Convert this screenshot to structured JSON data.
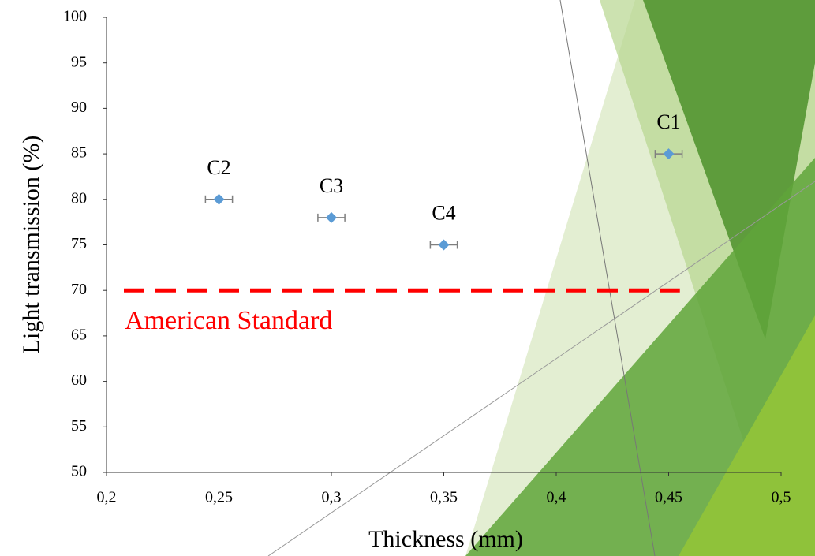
{
  "chart_data": {
    "type": "scatter",
    "x_label": "Thickness (mm)",
    "y_label": "Light transmission (%)",
    "x": [
      0.25,
      0.3,
      0.35,
      0.45
    ],
    "values": [
      80,
      78,
      75,
      85
    ],
    "xerr": [
      0.006,
      0.006,
      0.006,
      0.006
    ],
    "labels": [
      "C2",
      "C3",
      "C4",
      "C1"
    ],
    "color": "#5b9bd5",
    "xlim": [
      0.2,
      0.5
    ],
    "xticks": [
      {
        "value": 0.2,
        "label": "0,2"
      },
      {
        "value": 0.25,
        "label": "0,25"
      },
      {
        "value": 0.3,
        "label": "0,3"
      },
      {
        "value": 0.35,
        "label": "0,35"
      },
      {
        "value": 0.4,
        "label": "0,4"
      },
      {
        "value": 0.45,
        "label": "0,45"
      },
      {
        "value": 0.5,
        "label": "0,5"
      }
    ],
    "ylim": [
      50,
      100
    ],
    "yticks": [
      50,
      55,
      60,
      65,
      70,
      75,
      80,
      85,
      90,
      95,
      100
    ],
    "reference_lines": [
      {
        "label": "American Standard",
        "value": 70,
        "x": [
          0.2,
          0.455
        ],
        "color": "#ff0000"
      }
    ]
  }
}
